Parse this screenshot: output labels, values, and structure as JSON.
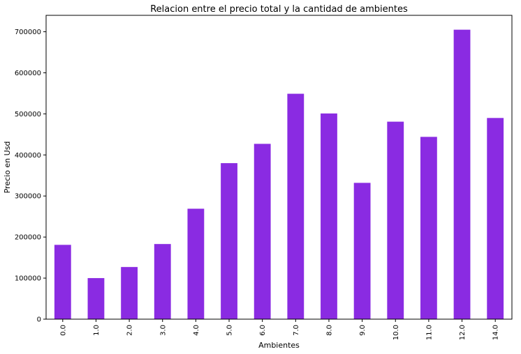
{
  "chart_data": {
    "type": "bar",
    "title": "Relacion entre el precio total y la cantidad de ambientes",
    "xlabel": "Ambientes",
    "ylabel": "Precio en Usd",
    "categories": [
      "0.0",
      "1.0",
      "2.0",
      "3.0",
      "4.0",
      "5.0",
      "6.0",
      "7.0",
      "8.0",
      "9.0",
      "10.0",
      "11.0",
      "12.0",
      "14.0"
    ],
    "values": [
      181000,
      100000,
      127000,
      183000,
      269000,
      380000,
      427000,
      549000,
      501000,
      332000,
      481000,
      444000,
      705000,
      490000
    ],
    "yticks": [
      0,
      100000,
      200000,
      300000,
      400000,
      500000,
      600000,
      700000
    ],
    "ytick_labels": [
      "0",
      "100000",
      "200000",
      "300000",
      "400000",
      "500000",
      "600000",
      "700000"
    ],
    "ylim": [
      0,
      740000
    ],
    "bar_color": "#8a2be2",
    "grid": false,
    "legend": "none"
  }
}
